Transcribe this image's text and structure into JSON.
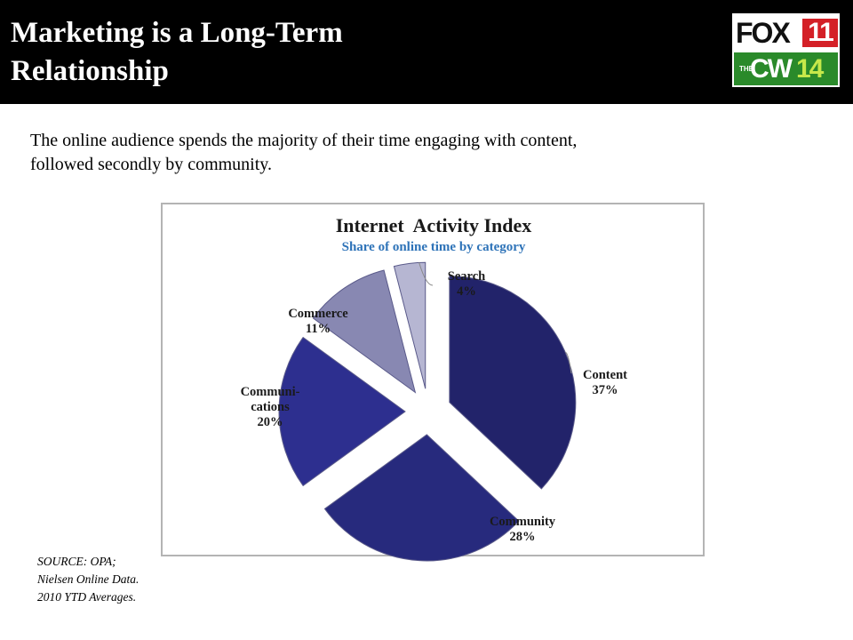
{
  "slide": {
    "title_lines": [
      "Marketing is a Long-Term",
      "Relationship"
    ],
    "intro_lines": [
      "The online audience spends the majority of their time engaging with content,",
      "followed secondly by community."
    ],
    "source_lines": [
      "SOURCE: OPA;",
      "Nielsen Online Data.",
      "2010 YTD Averages."
    ]
  },
  "logo": {
    "fox_text": "FOX",
    "fox_number": "11",
    "cw_prefix": "THE",
    "cw_text": "CW",
    "cw_number": "14"
  },
  "chart_data": {
    "type": "pie",
    "title": "Internet  Activity Index",
    "subtitle": "Share of online time by category",
    "slices": [
      {
        "label": "Content",
        "label_lines": [
          "Content",
          "37%"
        ],
        "value": 37,
        "color": "#22236a"
      },
      {
        "label": "Community",
        "label_lines": [
          "Community",
          "28%"
        ],
        "value": 28,
        "color": "#272a7d"
      },
      {
        "label": "Communications",
        "label_lines": [
          "Communi-",
          "cations",
          "20%"
        ],
        "value": 20,
        "color": "#2d2f8f"
      },
      {
        "label": "Commerce",
        "label_lines": [
          "Commerce",
          "11%"
        ],
        "value": 11,
        "color": "#8888b2"
      },
      {
        "label": "Search",
        "label_lines": [
          "Search",
          "4%"
        ],
        "value": 4,
        "color": "#b6b6d2"
      }
    ],
    "title_color": "#1a1a1a",
    "subtitle_color": "#2e73b8"
  }
}
